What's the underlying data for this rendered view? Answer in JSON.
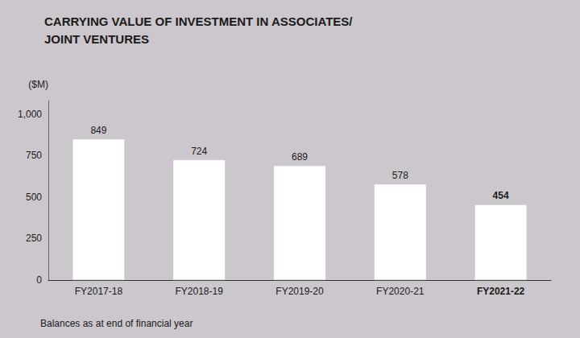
{
  "chart_data": {
    "type": "bar",
    "title": "CARRYING VALUE OF INVESTMENT IN ASSOCIATES/\nJOINT VENTURES",
    "ylabel": "($M)",
    "annotations": [
      "Balances as at end of financial year"
    ],
    "categories": [
      "FY2017-18",
      "FY2018-19",
      "FY2019-20",
      "FY2020-21",
      "FY2021-22"
    ],
    "values": [
      849,
      724,
      689,
      578,
      454
    ],
    "color": "#ffffff",
    "ylim": [
      0,
      1080
    ],
    "yticks": [
      0,
      250,
      500,
      750,
      {
        "value": 1000,
        "label": "1,000"
      }
    ],
    "grid": false,
    "data_labels": true
  }
}
